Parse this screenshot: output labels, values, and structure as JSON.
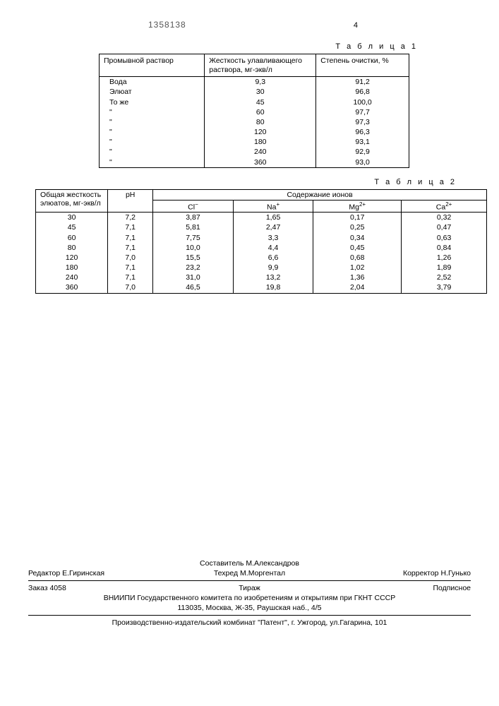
{
  "header": {
    "doc_number": "1358138",
    "page_col": "4"
  },
  "table1": {
    "label": "Т а б л и ц а 1",
    "headers": {
      "c1": "Промывной раствор",
      "c2": "Жесткость улавливающего раствора, мг-экв/л",
      "c3": "Степень очистки, %"
    },
    "rows": [
      {
        "c1": "Вода",
        "c2": "9,3",
        "c3": "91,2"
      },
      {
        "c1": "Элюат",
        "c2": "30",
        "c3": "96,8"
      },
      {
        "c1": "То же",
        "c2": "45",
        "c3": "100,0"
      },
      {
        "c1": "\"",
        "c2": "60",
        "c3": "97,7"
      },
      {
        "c1": "\"",
        "c2": "80",
        "c3": "97,3"
      },
      {
        "c1": "\"",
        "c2": "120",
        "c3": "96,3"
      },
      {
        "c1": "\"",
        "c2": "180",
        "c3": "93,1"
      },
      {
        "c1": "\"",
        "c2": "240",
        "c3": "92,9"
      },
      {
        "c1": "\"",
        "c2": "360",
        "c3": "93,0"
      }
    ]
  },
  "table2": {
    "label": "Т а б л и ц а 2",
    "headers": {
      "c1": "Общая жесткость элюатов, мг-экв/л",
      "c2": "pH",
      "ions": "Содержание ионов",
      "cl": "Cl⁻",
      "na": "Na⁺",
      "mg": "Mg²⁺",
      "ca": "Ca²⁺"
    },
    "rows": [
      {
        "h": "30",
        "ph": "7,2",
        "cl": "3,87",
        "na": "1,65",
        "mg": "0,17",
        "ca": "0,32"
      },
      {
        "h": "45",
        "ph": "7,1",
        "cl": "5,81",
        "na": "2,47",
        "mg": "0,25",
        "ca": "0,47"
      },
      {
        "h": "60",
        "ph": "7,1",
        "cl": "7,75",
        "na": "3,3",
        "mg": "0,34",
        "ca": "0,63"
      },
      {
        "h": "80",
        "ph": "7,1",
        "cl": "10,0",
        "na": "4,4",
        "mg": "0,45",
        "ca": "0,84"
      },
      {
        "h": "120",
        "ph": "7,0",
        "cl": "15,5",
        "na": "6,6",
        "mg": "0,68",
        "ca": "1,26"
      },
      {
        "h": "180",
        "ph": "7,1",
        "cl": "23,2",
        "na": "9,9",
        "mg": "1,02",
        "ca": "1,89"
      },
      {
        "h": "240",
        "ph": "7,1",
        "cl": "31,0",
        "na": "13,2",
        "mg": "1,36",
        "ca": "2,52"
      },
      {
        "h": "360",
        "ph": "7,0",
        "cl": "46,5",
        "na": "19,8",
        "mg": "2,04",
        "ca": "3,79"
      }
    ]
  },
  "footer": {
    "compiler": "Составитель М.Александров",
    "editor": "Редактор Е.Гиринская",
    "techred": "Техред М.Моргентал",
    "corrector": "Корректор Н.Гунько",
    "order": "Заказ 4058",
    "tirazh": "Тираж",
    "sub": "Подписное",
    "org1": "ВНИИПИ Государственного комитета по изобретениям и открытиям при ГКНТ СССР",
    "org2": "113035, Москва, Ж-35, Раушская наб., 4/5",
    "org3": "Производственно-издательский комбинат \"Патент\", г. Ужгород, ул.Гагарина, 101"
  }
}
